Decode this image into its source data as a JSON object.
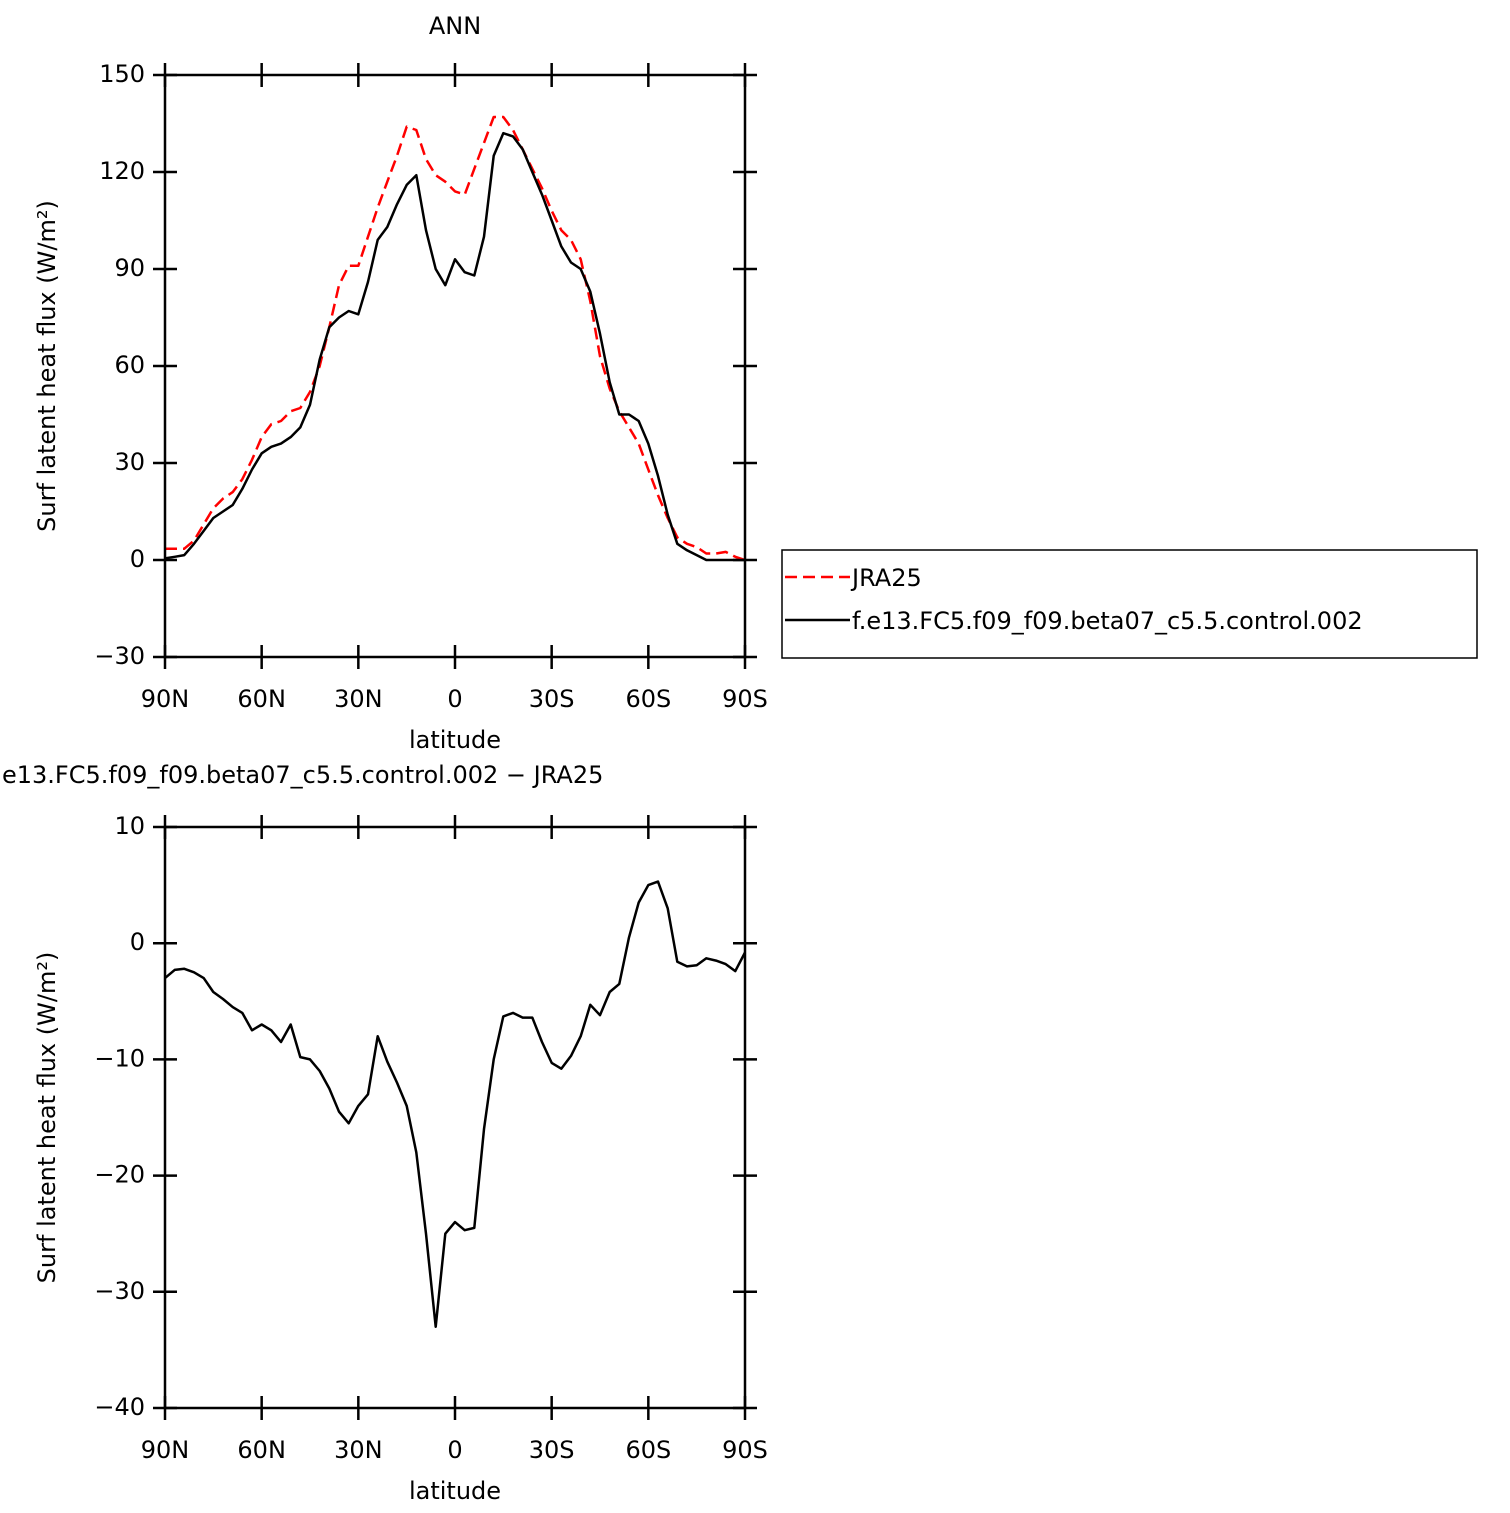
{
  "chart_data": [
    {
      "type": "line",
      "title": "ANN",
      "xlabel": "latitude",
      "ylabel": "Surf latent heat flux (W/m²)",
      "x": [
        90,
        87,
        84,
        81,
        78,
        75,
        72,
        69,
        66,
        63,
        60,
        57,
        54,
        51,
        48,
        45,
        42,
        39,
        36,
        33,
        30,
        27,
        24,
        21,
        18,
        15,
        12,
        9,
        6,
        3,
        0,
        -3,
        -6,
        -9,
        -12,
        -15,
        -18,
        -21,
        -24,
        -27,
        -30,
        -33,
        -36,
        -39,
        -42,
        -45,
        -48,
        -51,
        -54,
        -57,
        -60,
        -63,
        -66,
        -69,
        -72,
        -75,
        -78,
        -81,
        -84,
        -87,
        -90
      ],
      "series": [
        {
          "name": "JRA25",
          "color": "#ff0000",
          "dashed": true,
          "values": [
            3.5,
            3.5,
            3.5,
            6,
            11,
            16,
            19,
            21,
            25,
            31,
            38,
            42,
            43,
            46,
            47,
            52,
            60,
            72,
            85,
            91,
            91,
            100,
            109,
            117,
            125,
            134,
            133,
            124,
            119,
            117,
            114,
            113,
            121,
            129,
            137,
            137,
            133,
            127,
            121,
            115,
            108,
            102,
            99,
            93,
            80,
            63,
            53,
            46,
            41,
            36,
            28,
            20,
            13,
            7,
            5,
            4,
            2,
            2,
            2.5,
            1,
            0
          ]
        },
        {
          "name": "f.e13.FC5.f09_f09.beta07_c5.5.control.002",
          "color": "#000000",
          "dashed": false,
          "values": [
            0.5,
            1,
            1.5,
            5,
            9,
            13,
            15,
            17,
            22,
            28,
            33,
            35,
            36,
            38,
            41,
            48,
            62,
            72,
            75,
            77,
            76,
            86,
            99,
            103,
            110,
            116,
            119,
            102,
            90,
            85,
            93,
            89,
            88,
            100,
            125,
            132,
            131,
            127,
            120,
            113,
            105,
            97,
            92,
            90,
            83,
            70,
            55,
            45,
            45,
            43,
            36,
            26,
            14,
            5,
            3,
            1.5,
            0,
            0,
            0,
            0,
            0
          ]
        }
      ],
      "xlim": [
        90,
        -90
      ],
      "xticks": [
        {
          "value": 90,
          "label": "90N"
        },
        {
          "value": 60,
          "label": "60N"
        },
        {
          "value": 30,
          "label": "30N"
        },
        0,
        {
          "value": -30,
          "label": "30S"
        },
        {
          "value": -60,
          "label": "60S"
        },
        {
          "value": -90,
          "label": "90S"
        }
      ],
      "ylim": [
        -30,
        150
      ],
      "yticks": [
        {
          "value": -30,
          "label": "−30"
        },
        0,
        30,
        60,
        90,
        120,
        150
      ],
      "legend_position": "right"
    },
    {
      "type": "line",
      "title": "e13.FC5.f09_f09.beta07_c5.5.control.002 − JRA25",
      "xlabel": "latitude",
      "ylabel": "Surf latent heat flux (W/m²)",
      "x": [
        90,
        87,
        84,
        81,
        78,
        75,
        72,
        69,
        66,
        63,
        60,
        57,
        54,
        51,
        48,
        45,
        42,
        39,
        36,
        33,
        30,
        27,
        24,
        21,
        18,
        15,
        12,
        9,
        6,
        3,
        0,
        -3,
        -6,
        -9,
        -12,
        -15,
        -18,
        -21,
        -24,
        -27,
        -30,
        -33,
        -36,
        -39,
        -42,
        -45,
        -48,
        -51,
        -54,
        -57,
        -60,
        -63,
        -66,
        -69,
        -72,
        -75,
        -78,
        -81,
        -84,
        -87,
        -90
      ],
      "values": [
        -3,
        -2.3,
        -2.2,
        -2.5,
        -3,
        -4.2,
        -4.8,
        -5.5,
        -6,
        -7.5,
        -7,
        -7.5,
        -8.5,
        -7,
        -9.8,
        -10,
        -11,
        -12.5,
        -14.5,
        -15.5,
        -14,
        -13,
        -8,
        -10.2,
        -12,
        -14,
        -18,
        -25,
        -33,
        -25,
        -24,
        -24.7,
        -24.5,
        -16,
        -10,
        -6.3,
        -6,
        -6.4,
        -6.4,
        -8.5,
        -10.3,
        -10.8,
        -9.7,
        -8,
        -5.3,
        -6.2,
        -4.2,
        -3.5,
        0.5,
        3.5,
        5,
        5.3,
        3,
        -1.6,
        -2,
        -1.9,
        -1.3,
        -1.5,
        -1.8,
        -2.4,
        -0.8
      ],
      "color": "#000000",
      "xlim": [
        90,
        -90
      ],
      "xticks": [
        {
          "value": 90,
          "label": "90N"
        },
        {
          "value": 60,
          "label": "60N"
        },
        {
          "value": 30,
          "label": "30N"
        },
        0,
        {
          "value": -30,
          "label": "30S"
        },
        {
          "value": -60,
          "label": "60S"
        },
        {
          "value": -90,
          "label": "90S"
        }
      ],
      "ylim": [
        -40,
        10
      ],
      "yticks": [
        {
          "value": -40,
          "label": "−40"
        },
        {
          "value": -30,
          "label": "−30"
        },
        {
          "value": -20,
          "label": "−20"
        },
        {
          "value": -10,
          "label": "−10"
        },
        0,
        10
      ]
    }
  ]
}
